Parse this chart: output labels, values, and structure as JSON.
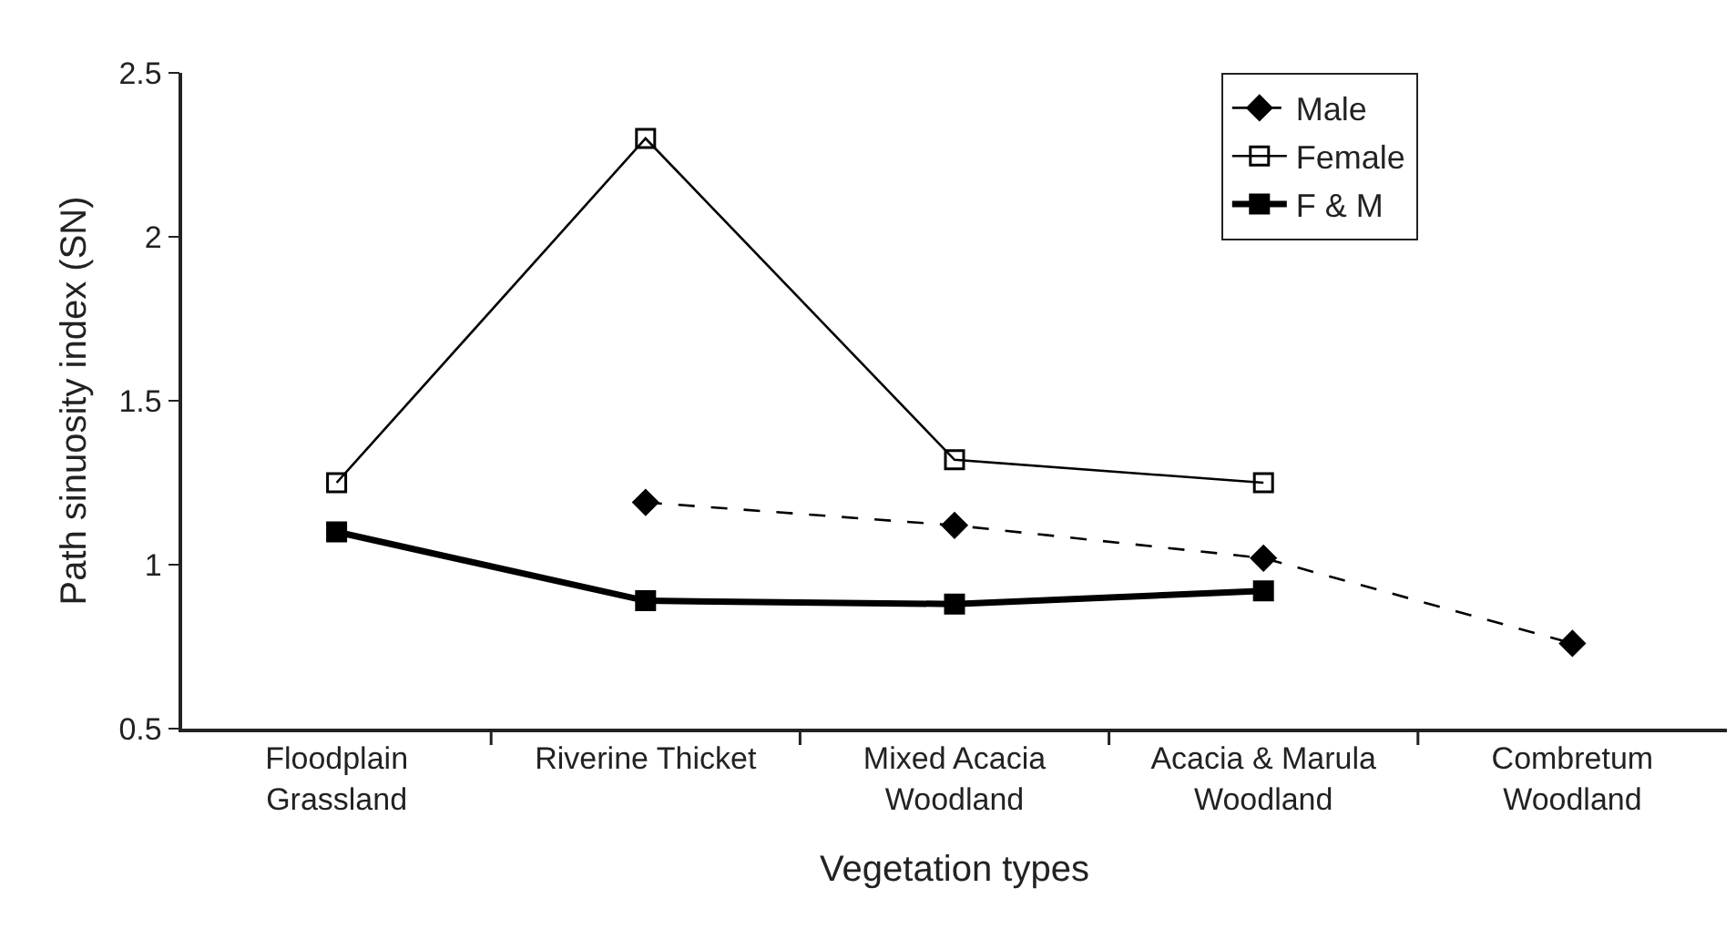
{
  "chart_data": {
    "type": "line",
    "xlabel": "Vegetation types",
    "ylabel": "Path sinuosity index (SN)",
    "categories": [
      "Floodplain\nGrassland",
      "Riverine Thicket",
      "Mixed Acacia\nWoodland",
      "Acacia & Marula\nWoodland",
      "Combretum\nWoodland"
    ],
    "series": [
      {
        "name": "Male",
        "color": "#000000",
        "marker": "diamond",
        "line_style": "dashed",
        "values": [
          null,
          1.19,
          1.12,
          1.02,
          0.76
        ]
      },
      {
        "name": "Female",
        "color": "#000000",
        "marker": "square",
        "line_style": "solid",
        "values": [
          1.25,
          2.3,
          1.32,
          1.25,
          null
        ]
      },
      {
        "name": "F & M",
        "color": "#000000",
        "marker": "square",
        "line_style": "solid",
        "values": [
          1.1,
          0.89,
          0.88,
          0.92,
          null
        ]
      }
    ],
    "ylim": [
      0.5,
      2.5
    ],
    "yticks": [
      0.5,
      1,
      1.5,
      2,
      2.5
    ],
    "grid": false,
    "legend": "top right"
  }
}
